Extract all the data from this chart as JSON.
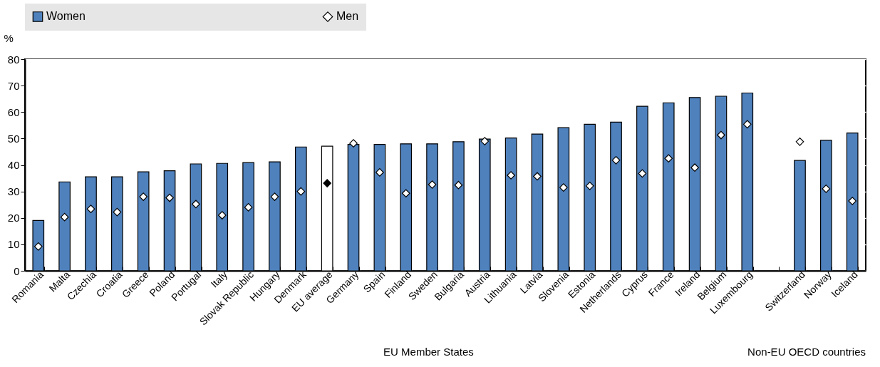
{
  "chart_data": {
    "type": "bar",
    "ylabel": "%",
    "categories": [
      "Romania",
      "Malta",
      "Czechia",
      "Croatia",
      "Greece",
      "Poland",
      "Portugal",
      "Italy",
      "Slovak Republic",
      "Hungary",
      "Denmark",
      "EU average",
      "Germany",
      "Spain",
      "Finland",
      "Sweden",
      "Bulgaria",
      "Austria",
      "Lithuania",
      "Latvia",
      "Slovenia",
      "Estonia",
      "Netherlands",
      "Cyprus",
      "France",
      "Ireland",
      "Belgium",
      "Luxembourg",
      null,
      "Switzerland",
      "Norway",
      "Iceland"
    ],
    "series": [
      {
        "name": "Women",
        "type": "bar",
        "color": "#4f81bd",
        "colors": [
          "#4f81bd",
          "#4f81bd",
          "#4f81bd",
          "#4f81bd",
          "#4f81bd",
          "#4f81bd",
          "#4f81bd",
          "#4f81bd",
          "#4f81bd",
          "#4f81bd",
          "#4f81bd",
          "#ffffff",
          "#4f81bd",
          "#4f81bd",
          "#4f81bd",
          "#4f81bd",
          "#4f81bd",
          "#4f81bd",
          "#4f81bd",
          "#4f81bd",
          "#4f81bd",
          "#4f81bd",
          "#4f81bd",
          "#4f81bd",
          "#4f81bd",
          "#4f81bd",
          "#4f81bd",
          "#4f81bd",
          "#4f81bd",
          "#4f81bd",
          "#4f81bd",
          "#4f81bd"
        ],
        "values": [
          19,
          33.6,
          35.5,
          35.5,
          37.4,
          37.8,
          40.4,
          40.6,
          40.9,
          41.2,
          46.8,
          47.1,
          47.8,
          47.8,
          48,
          48,
          48.8,
          49.8,
          50.2,
          51.7,
          54.1,
          55.4,
          56.2,
          62.2,
          63.5,
          65.5,
          66,
          67.2,
          null,
          41.7,
          49.3,
          52.1
        ]
      },
      {
        "name": "Men",
        "type": "scatter",
        "marker": "diamond",
        "color": "#ffffff",
        "colors": [
          "#ffffff",
          "#ffffff",
          "#ffffff",
          "#ffffff",
          "#ffffff",
          "#ffffff",
          "#ffffff",
          "#ffffff",
          "#ffffff",
          "#ffffff",
          "#ffffff",
          "#000000",
          "#ffffff",
          "#ffffff",
          "#ffffff",
          "#ffffff",
          "#ffffff",
          "#ffffff",
          "#ffffff",
          "#ffffff",
          "#ffffff",
          "#ffffff",
          "#ffffff",
          "#ffffff",
          "#ffffff",
          "#ffffff",
          "#ffffff",
          "#ffffff",
          "#ffffff",
          "#ffffff",
          "#ffffff",
          "#ffffff"
        ],
        "values": [
          9.2,
          20.3,
          23.4,
          22.2,
          28,
          27.6,
          25.2,
          21,
          24,
          28,
          30,
          33.1,
          48.2,
          37.2,
          29.3,
          32.6,
          32.4,
          49,
          36.1,
          35.7,
          31.5,
          32.1,
          41.8,
          36.8,
          42.5,
          39,
          51.3,
          55.4,
          null,
          48.8,
          31,
          26.4
        ]
      }
    ],
    "ylim": [
      0,
      80
    ],
    "yticks": [
      0,
      10,
      20,
      30,
      40,
      50,
      60,
      70,
      80
    ],
    "grid": true,
    "legend": "top",
    "annotations": [
      "EU Member States",
      "Non-EU OECD countries"
    ]
  }
}
